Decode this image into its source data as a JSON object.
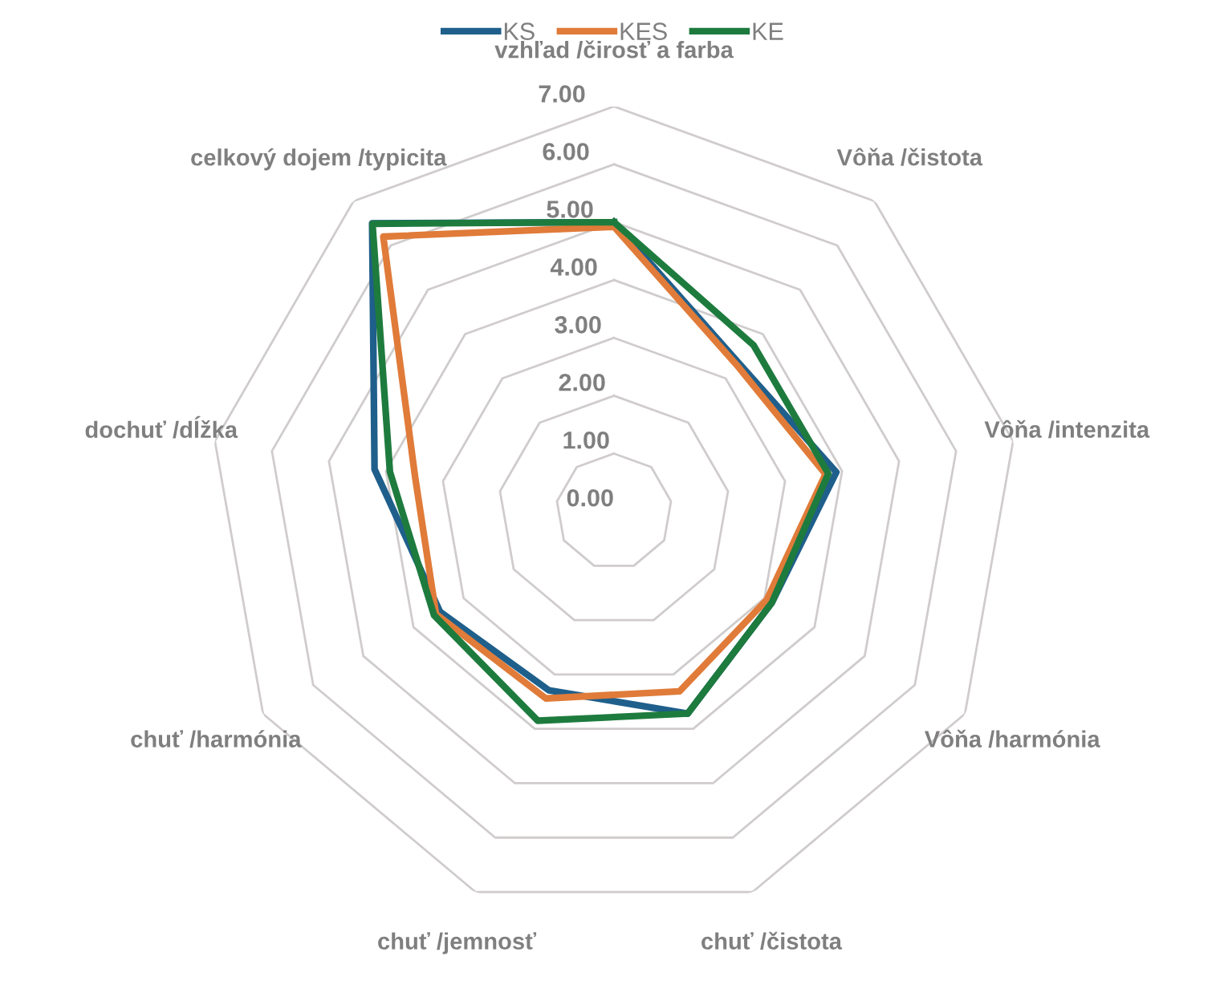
{
  "chart_data": {
    "type": "radar",
    "categories": [
      "vzhľad /čirosť a farba",
      "Vôňa /čistota",
      "Vôňa /intenzita",
      "Vôňa /harmónia",
      "chuť /čistota",
      "chuť /jemnosť",
      "chuť /harmónia",
      "dochuť /dĺžka",
      "celkový dojem /typicita"
    ],
    "series": [
      {
        "name": "KS",
        "color": "#1f5f8b",
        "values": [
          5.0,
          3.35,
          3.9,
          3.15,
          3.72,
          3.29,
          3.47,
          4.2,
          6.5
        ]
      },
      {
        "name": "KES",
        "color": "#e07b39",
        "values": [
          4.92,
          3.3,
          3.71,
          3.05,
          3.31,
          3.44,
          3.55,
          3.49,
          6.2
        ]
      },
      {
        "name": "KE",
        "color": "#1e7b3e",
        "values": [
          5.0,
          3.75,
          3.76,
          3.15,
          3.72,
          3.85,
          3.59,
          3.93,
          6.49
        ]
      }
    ],
    "ylim": [
      0,
      7
    ],
    "yticks": [
      {
        "value": 0,
        "label": "0.00"
      },
      {
        "value": 1,
        "label": "1.00"
      },
      {
        "value": 2,
        "label": "2.00"
      },
      {
        "value": 3,
        "label": "3.00"
      },
      {
        "value": 4,
        "label": "4.00"
      },
      {
        "value": 5,
        "label": "5.00"
      },
      {
        "value": 6,
        "label": "6.00"
      },
      {
        "value": 7,
        "label": "7.00"
      }
    ],
    "grid": true,
    "legend": "top",
    "marker": "none",
    "line_style": "solid"
  }
}
